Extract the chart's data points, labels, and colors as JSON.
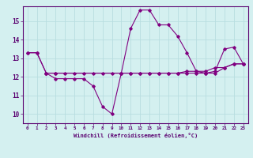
{
  "title": "",
  "xlabel": "Windchill (Refroidissement éolien,°C)",
  "background_color": "#d4f0f0",
  "grid_color": "#b8dde0",
  "line_color": "#800080",
  "x_ticks": [
    0,
    1,
    2,
    3,
    4,
    5,
    6,
    7,
    8,
    9,
    10,
    11,
    12,
    13,
    14,
    15,
    16,
    17,
    18,
    19,
    20,
    21,
    22,
    23
  ],
  "y_ticks": [
    10,
    11,
    12,
    13,
    14,
    15
  ],
  "ylim": [
    9.5,
    15.8
  ],
  "xlim": [
    -0.5,
    23.5
  ],
  "curve1_x": [
    0,
    1,
    2,
    3,
    4,
    5,
    6,
    7,
    8,
    9,
    10,
    11,
    12,
    13,
    14,
    15,
    16,
    17,
    18,
    19,
    20,
    21,
    22,
    23
  ],
  "curve1_y": [
    13.3,
    13.3,
    12.2,
    11.9,
    11.9,
    11.9,
    11.9,
    11.5,
    10.4,
    10.0,
    12.2,
    14.6,
    15.6,
    15.6,
    14.8,
    14.8,
    14.2,
    13.3,
    12.3,
    12.2,
    12.3,
    13.5,
    13.6,
    12.7
  ],
  "curve2_x": [
    0,
    1,
    2,
    3,
    10,
    11,
    12,
    13,
    14,
    15,
    16,
    17,
    18,
    19,
    20,
    21,
    22,
    23
  ],
  "curve2_y": [
    13.3,
    13.3,
    12.2,
    12.2,
    12.2,
    12.2,
    12.2,
    12.2,
    12.2,
    12.2,
    12.2,
    12.3,
    12.3,
    12.3,
    12.5,
    12.5,
    12.7,
    12.7
  ],
  "curve3_x": [
    2,
    3,
    4,
    5,
    6,
    7,
    8,
    9,
    10,
    11,
    12,
    13,
    14,
    15,
    16,
    17,
    18,
    19,
    20,
    21,
    22,
    23
  ],
  "curve3_y": [
    12.2,
    12.2,
    12.2,
    12.2,
    12.2,
    12.2,
    12.2,
    12.2,
    12.2,
    12.2,
    12.2,
    12.2,
    12.2,
    12.2,
    12.2,
    12.2,
    12.2,
    12.2,
    12.2,
    12.5,
    12.7,
    12.7
  ]
}
